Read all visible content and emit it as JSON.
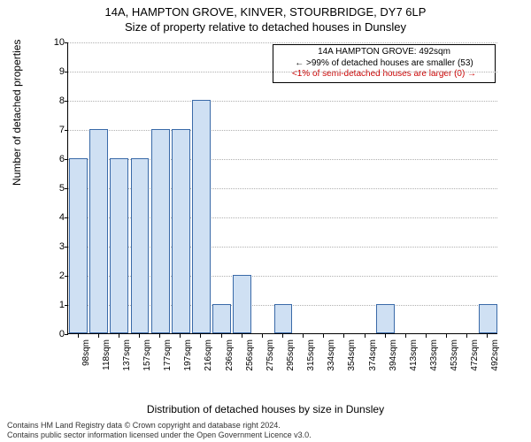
{
  "title": {
    "main": "14A, HAMPTON GROVE, KINVER, STOURBRIDGE, DY7 6LP",
    "sub": "Size of property relative to detached houses in Dunsley"
  },
  "chart": {
    "type": "bar",
    "ylabel": "Number of detached properties",
    "xlabel": "Distribution of detached houses by size in Dunsley",
    "ylim_max": 10,
    "ytick_step": 1,
    "categories": [
      "98sqm",
      "118sqm",
      "137sqm",
      "157sqm",
      "177sqm",
      "197sqm",
      "216sqm",
      "236sqm",
      "256sqm",
      "275sqm",
      "295sqm",
      "315sqm",
      "334sqm",
      "354sqm",
      "374sqm",
      "394sqm",
      "413sqm",
      "433sqm",
      "453sqm",
      "472sqm",
      "492sqm"
    ],
    "values": [
      6,
      7,
      6,
      6,
      7,
      7,
      8,
      1,
      2,
      0,
      1,
      0,
      0,
      0,
      0,
      1,
      0,
      0,
      0,
      0,
      1
    ],
    "bar_fill": "#cfe0f3",
    "bar_border": "#3a6aa8",
    "grid_color": "#b0b0b0",
    "background_color": "#ffffff",
    "label_fontsize": 12,
    "tick_fontsize": 11
  },
  "annotation": {
    "line1": "14A HAMPTON GROVE: 492sqm",
    "line2": "← >99% of detached houses are smaller (53)",
    "line3": "<1% of semi-detached houses are larger (0) →"
  },
  "footer": {
    "line1": "Contains HM Land Registry data © Crown copyright and database right 2024.",
    "line2": "Contains public sector information licensed under the Open Government Licence v3.0."
  }
}
